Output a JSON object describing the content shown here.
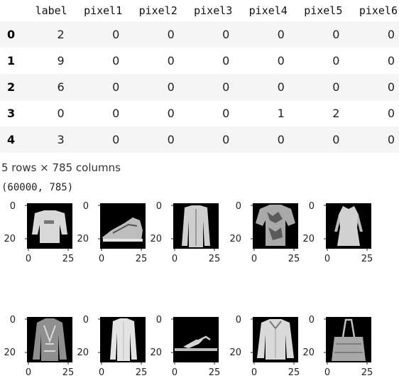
{
  "table": {
    "columns": [
      "",
      "label",
      "pixel1",
      "pixel2",
      "pixel3",
      "pixel4",
      "pixel5",
      "pixel6"
    ],
    "rows": [
      {
        "index": "0",
        "values": [
          "2",
          "0",
          "0",
          "0",
          "0",
          "0",
          "0"
        ]
      },
      {
        "index": "1",
        "values": [
          "9",
          "0",
          "0",
          "0",
          "0",
          "0",
          "0"
        ]
      },
      {
        "index": "2",
        "values": [
          "6",
          "0",
          "0",
          "0",
          "0",
          "0",
          "0"
        ]
      },
      {
        "index": "3",
        "values": [
          "0",
          "0",
          "0",
          "0",
          "1",
          "2",
          "0"
        ]
      },
      {
        "index": "4",
        "values": [
          "3",
          "0",
          "0",
          "0",
          "0",
          "0",
          "0"
        ]
      }
    ]
  },
  "footer_note": "5 rows × 785 columns",
  "shape_output": "(60000, 785)",
  "images": {
    "ytick_labels": [
      "0",
      "20"
    ],
    "xtick_labels": [
      "0",
      "25"
    ],
    "items": [
      {
        "icon": "sweater-icon"
      },
      {
        "icon": "sneaker-icon"
      },
      {
        "icon": "shirt-icon"
      },
      {
        "icon": "tshirt-icon"
      },
      {
        "icon": "dress-icon"
      },
      {
        "icon": "coat-icon"
      },
      {
        "icon": "coat-icon"
      },
      {
        "icon": "sandal-icon"
      },
      {
        "icon": "pullover-icon"
      },
      {
        "icon": "bag-icon"
      }
    ]
  }
}
